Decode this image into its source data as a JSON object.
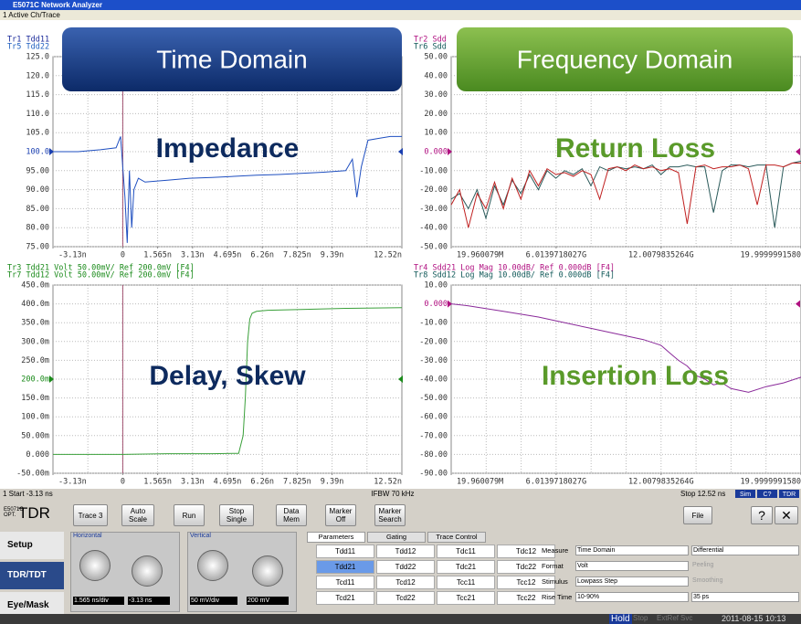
{
  "window": {
    "title": "E5071C Network Analyzer",
    "menu": "1 Active Ch/Trace"
  },
  "banners": {
    "time": "Time Domain",
    "freq": "Frequency Domain"
  },
  "panels": [
    {
      "headers": [
        "Tr1 Tdd11",
        "Tr5 Tdd22"
      ],
      "header_colors": [
        "#1a2a9a",
        "#2060c0"
      ],
      "overlay": "Impedance",
      "overlay_color": "#0d2a5e",
      "ylim": [
        75,
        125
      ],
      "yticks": [
        {
          "value": 125,
          "label": "125.0"
        },
        {
          "value": 120,
          "label": "120.0"
        },
        {
          "value": 115,
          "label": "115.0"
        },
        {
          "value": 110,
          "label": "110.0"
        },
        {
          "value": 105,
          "label": "105.0"
        },
        {
          "value": 100,
          "label": "100.0"
        },
        {
          "value": 95,
          "label": "95.00"
        },
        {
          "value": 90,
          "label": "90.00"
        },
        {
          "value": 85,
          "label": "85.00"
        },
        {
          "value": 80,
          "label": "80.00"
        },
        {
          "value": 75,
          "label": "75.00"
        }
      ],
      "ref_tick": 5,
      "ref_color": "#1a3fb0",
      "xlim": [
        -3.13,
        12.52
      ],
      "xticks": [
        {
          "value": -3.13,
          "label": "-3.13n"
        },
        0,
        {
          "value": 1.565,
          "label": "1.565n"
        },
        {
          "value": 3.13,
          "label": "3.13n"
        },
        {
          "value": 4.695,
          "label": "4.695n"
        },
        {
          "value": 6.26,
          "label": "6.26n"
        },
        {
          "value": 7.825,
          "label": "7.825n"
        },
        {
          "value": 9.39,
          "label": "9.39n"
        },
        {
          "value": 12.52,
          "label": "12.52n"
        }
      ],
      "series": [
        {
          "color": "#1f4fc0",
          "x": [
            -3.13,
            -2,
            -1,
            -0.3,
            -0.1,
            0.1,
            0.2,
            0.3,
            0.4,
            0.5,
            0.7,
            1,
            2,
            3,
            4,
            5,
            6,
            7,
            8,
            9,
            10,
            10.3,
            10.5,
            10.7,
            11,
            11.5,
            12,
            12.52
          ],
          "values": [
            100,
            100,
            100.5,
            101,
            104,
            88,
            76,
            95,
            80,
            90,
            93,
            92,
            92.5,
            93,
            93.2,
            93.5,
            93.8,
            94,
            94.3,
            94.6,
            95,
            98,
            88,
            96,
            103,
            103.5,
            104,
            104
          ]
        }
      ]
    },
    {
      "headers": [
        "Tr2 Sdd",
        "Tr6 Sdd"
      ],
      "header_colors": [
        "#b01080",
        "#105858"
      ],
      "overlay": "Return Loss",
      "overlay_color": "#5a9a2a",
      "ylim": [
        -50,
        50
      ],
      "yticks": [
        {
          "value": 50,
          "label": "50.00"
        },
        {
          "value": 40,
          "label": "40.00"
        },
        {
          "value": 30,
          "label": "30.00"
        },
        {
          "value": 20,
          "label": "20.00"
        },
        {
          "value": 10,
          "label": "10.00"
        },
        {
          "value": 0,
          "label": "0.000"
        },
        {
          "value": -10,
          "label": "-10.00"
        },
        {
          "value": -20,
          "label": "-20.00"
        },
        {
          "value": -30,
          "label": "-30.00"
        },
        {
          "value": -40,
          "label": "-40.00"
        },
        {
          "value": -50,
          "label": "-50.00"
        }
      ],
      "ref_tick": 5,
      "ref_color": "#b01080",
      "xlim": [
        0.019960079,
        20
      ],
      "xticks": [
        {
          "value": 0.019960079,
          "label": "19.960079M"
        },
        {
          "value": 6.0139718027,
          "label": "6.0139718027G"
        },
        {
          "value": 12.0079835264,
          "label": "12.0079835264G"
        },
        {
          "value": 19.999999158,
          "label": "19.9999991580"
        }
      ],
      "series": [
        {
          "color": "#2a5a5a",
          "x": [
            0.02,
            0.5,
            1,
            1.5,
            2,
            2.5,
            3,
            3.5,
            4,
            4.5,
            5,
            5.5,
            6,
            6.5,
            7,
            7.5,
            8,
            8.5,
            9,
            9.5,
            10,
            10.5,
            11,
            11.5,
            12,
            12.5,
            13,
            13.5,
            14,
            14.5,
            15,
            15.5,
            16,
            16.5,
            17,
            17.5,
            18,
            18.5,
            19,
            19.5,
            20
          ],
          "values": [
            -25,
            -22,
            -30,
            -20,
            -35,
            -18,
            -28,
            -15,
            -22,
            -12,
            -20,
            -10,
            -14,
            -10,
            -12,
            -9,
            -18,
            -8,
            -10,
            -8,
            -9,
            -8,
            -9,
            -7,
            -12,
            -8,
            -8,
            -7,
            -8,
            -8,
            -32,
            -10,
            -7,
            -7,
            -8,
            -7,
            -7,
            -40,
            -8,
            -6,
            -5
          ]
        },
        {
          "color": "#c02020",
          "x": [
            0.02,
            0.5,
            1,
            1.5,
            2,
            2.5,
            3,
            3.5,
            4,
            4.5,
            5,
            5.5,
            6,
            6.5,
            7,
            7.5,
            8,
            8.5,
            9,
            9.5,
            10,
            10.5,
            11,
            11.5,
            12,
            12.5,
            13,
            13.5,
            14,
            14.5,
            15,
            15.5,
            16,
            16.5,
            17,
            17.5,
            18,
            18.5,
            19,
            19.5,
            20
          ],
          "values": [
            -28,
            -20,
            -40,
            -22,
            -30,
            -16,
            -30,
            -14,
            -25,
            -10,
            -18,
            -9,
            -12,
            -11,
            -13,
            -10,
            -12,
            -25,
            -9,
            -8,
            -10,
            -7,
            -9,
            -8,
            -10,
            -9,
            -11,
            -38,
            -8,
            -7,
            -9,
            -8,
            -8,
            -7,
            -9,
            -28,
            -7,
            -7,
            -8,
            -6,
            -6
          ]
        }
      ]
    },
    {
      "headers": [
        "Tr3 Tdd21 Volt 50.00mV/ Ref 200.0mV [F4]",
        "Tr7 Tdd12 Volt 50.00mV/ Ref 200.0mV [F4]"
      ],
      "header_colors": [
        "#1a8a1a",
        "#1a8a1a"
      ],
      "overlay": "Delay, Skew",
      "overlay_color": "#0d2a5e",
      "ylim": [
        -0.05,
        0.45
      ],
      "yticks": [
        {
          "value": 0.45,
          "label": "450.0m"
        },
        {
          "value": 0.4,
          "label": "400.0m"
        },
        {
          "value": 0.35,
          "label": "350.0m"
        },
        {
          "value": 0.3,
          "label": "300.0m"
        },
        {
          "value": 0.25,
          "label": "250.0m"
        },
        {
          "value": 0.2,
          "label": "200.0m"
        },
        {
          "value": 0.15,
          "label": "150.0m"
        },
        {
          "value": 0.1,
          "label": "100.0m"
        },
        {
          "value": 0.05,
          "label": "50.00m"
        },
        {
          "value": 0,
          "label": "0.000"
        },
        {
          "value": -0.05,
          "label": "-50.00m"
        }
      ],
      "ref_tick": 5,
      "ref_color": "#1a8a1a",
      "xlim": [
        -3.13,
        12.52
      ],
      "xticks": [
        {
          "value": -3.13,
          "label": "-3.13n"
        },
        0,
        {
          "value": 1.565,
          "label": "1.565n"
        },
        {
          "value": 3.13,
          "label": "3.13n"
        },
        {
          "value": 4.695,
          "label": "4.695n"
        },
        {
          "value": 6.26,
          "label": "6.26n"
        },
        {
          "value": 7.825,
          "label": "7.825n"
        },
        {
          "value": 9.39,
          "label": "9.39n"
        },
        {
          "value": 12.52,
          "label": "12.52n"
        }
      ],
      "series": [
        {
          "color": "#3aa03a",
          "x": [
            -3.13,
            0,
            2,
            4,
            5.2,
            5.4,
            5.5,
            5.6,
            5.7,
            5.8,
            6,
            6.5,
            8,
            10,
            12.52
          ],
          "values": [
            0,
            0,
            0.002,
            0.002,
            0.003,
            0.05,
            0.15,
            0.3,
            0.36,
            0.375,
            0.38,
            0.383,
            0.385,
            0.388,
            0.39
          ]
        }
      ]
    },
    {
      "headers": [
        "Tr4 Sdd21 Log Mag 10.00dB/ Ref 0.000dB [F4]",
        "Tr8 Sdd12 Log Mag 10.00dB/ Ref 0.000dB [F4]"
      ],
      "header_colors": [
        "#b01080",
        "#105858"
      ],
      "overlay": "Insertion Loss",
      "overlay_color": "#5a9a2a",
      "ylim": [
        -90,
        10
      ],
      "yticks": [
        {
          "value": 10,
          "label": "10.00"
        },
        {
          "value": 0,
          "label": "0.000"
        },
        {
          "value": -10,
          "label": "-10.00"
        },
        {
          "value": -20,
          "label": "-20.00"
        },
        {
          "value": -30,
          "label": "-30.00"
        },
        {
          "value": -40,
          "label": "-40.00"
        },
        {
          "value": -50,
          "label": "-50.00"
        },
        {
          "value": -60,
          "label": "-60.00"
        },
        {
          "value": -70,
          "label": "-70.00"
        },
        {
          "value": -80,
          "label": "-80.00"
        },
        {
          "value": -90,
          "label": "-90.00"
        }
      ],
      "ref_tick": 1,
      "ref_color": "#b01080",
      "xlim": [
        0.019960079,
        20
      ],
      "xticks": [
        {
          "value": 0.019960079,
          "label": "19.960079M"
        },
        {
          "value": 6.0139718027,
          "label": "6.0139718027G"
        },
        {
          "value": 12.0079835264,
          "label": "12.0079835264G"
        },
        {
          "value": 19.999999158,
          "label": "19.9999991580"
        }
      ],
      "series": [
        {
          "color": "#8a2a9a",
          "x": [
            0.02,
            1,
            2,
            3,
            4,
            5,
            6,
            7,
            8,
            9,
            10,
            11,
            12,
            12.5,
            13,
            13.5,
            14,
            14.5,
            15,
            15.5,
            16,
            17,
            18,
            19,
            20
          ],
          "values": [
            0,
            -1,
            -2.5,
            -4,
            -5.5,
            -7,
            -9,
            -11,
            -13,
            -15,
            -17,
            -19,
            -22,
            -26,
            -30,
            -33,
            -38,
            -40,
            -43,
            -42,
            -45,
            -47,
            -44,
            -42,
            -39
          ]
        }
      ]
    }
  ],
  "status": {
    "start": "1 Start -3.13 ns",
    "ifbw": "IFBW 70 kHz",
    "stop": "Stop 12.52 ns",
    "flags": [
      "Sim",
      "C?",
      "TDR"
    ]
  },
  "toolbar": {
    "model": "E5071C OPT.",
    "app": "TDR",
    "buttons": [
      "Trace 3",
      "Auto Scale",
      "Run",
      "Stop Single",
      "Data Mem",
      "Marker Off",
      "Marker Search"
    ],
    "file": "File",
    "help": "?"
  },
  "side": [
    "Setup",
    "TDR/TDT",
    "Eye/Mask"
  ],
  "horizontal": {
    "label": "Horizontal",
    "scale": "1.565 ns/div",
    "pos": "-3.13 ns"
  },
  "vertical": {
    "label": "Vertical",
    "scale": "50 mV/div",
    "pos": "200 mV"
  },
  "tabs": [
    "Parameters",
    "Gating",
    "Trace Control"
  ],
  "params": [
    [
      "Tdd11",
      "Tdd12",
      "Tdc11",
      "Tdc12"
    ],
    [
      "Tdd21",
      "Tdd22",
      "Tdc21",
      "Tdc22"
    ],
    [
      "Tcd11",
      "Tcd12",
      "Tcc11",
      "Tcc12"
    ],
    [
      "Tcd21",
      "Tcd22",
      "Tcc21",
      "Tcc22"
    ]
  ],
  "settings": [
    {
      "label": "Measure",
      "value": "Time Domain",
      "extra": "Differential"
    },
    {
      "label": "Format",
      "value": "Volt",
      "extra": "Peeling"
    },
    {
      "label": "Stimulus",
      "value": "Lowpass Step",
      "extra": "Smoothing"
    },
    {
      "label": "Rise Time",
      "value": "10-90%",
      "extra": "35 ps"
    }
  ],
  "footer": {
    "flags": [
      "Hold",
      "Stop",
      "ExtRef",
      "Svc"
    ],
    "time": "2011-08-15 10:13"
  }
}
